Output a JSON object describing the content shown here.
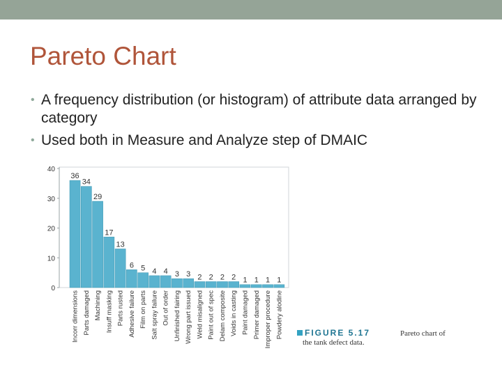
{
  "slide": {
    "title": "Pareto Chart",
    "bullets": [
      "A frequency distribution (or histogram) of attribute data arranged by category",
      "Used both in Measure and Analyze step of DMAIC"
    ]
  },
  "colors": {
    "top_bar": "#95a497",
    "title": "#b0553a",
    "bar": "#5ab3cf",
    "bar_stroke": "#3d97b3",
    "figure_label": "#1f7592"
  },
  "caption": {
    "label": "FIGURE 5.17",
    "text_line1": "Pareto chart of",
    "text_line2": "the tank defect data."
  },
  "chart_data": {
    "type": "bar",
    "categories": [
      "Incorr dimensions",
      "Parts damaged",
      "Machining",
      "Insuff masking",
      "Parts rusted",
      "Adhesive failure",
      "Film on parts",
      "Salt spray failure",
      "Out of order",
      "Unfinished fairing",
      "Wrong part issued",
      "Weld misaligned",
      "Paint out of spec",
      "Delam composite",
      "Voids in casting",
      "Paint damaged",
      "Primer damaged",
      "Improper procedure",
      "Powdery alodine"
    ],
    "values": [
      36,
      34,
      29,
      17,
      13,
      6,
      5,
      4,
      4,
      3,
      3,
      2,
      2,
      2,
      2,
      1,
      1,
      1,
      1
    ],
    "ylim": [
      0,
      40
    ],
    "yticks": [
      0,
      10,
      20,
      30,
      40
    ],
    "data_labels": true,
    "grid": false,
    "title": "",
    "xlabel": "",
    "ylabel": ""
  }
}
